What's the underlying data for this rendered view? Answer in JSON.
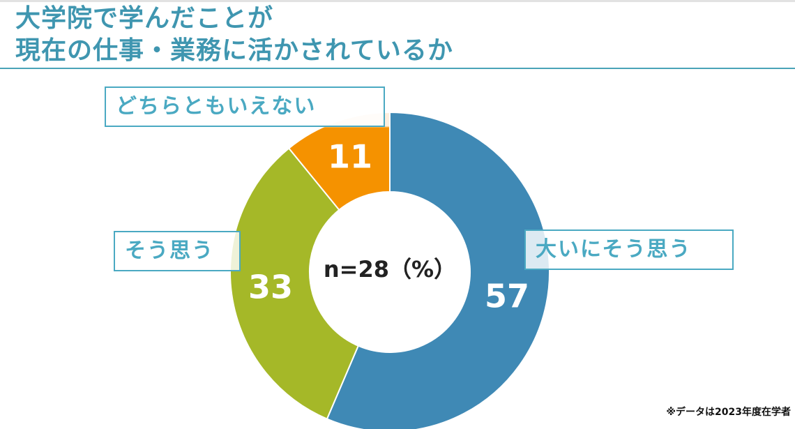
{
  "title": {
    "line1": "大学院で学んだことが",
    "line2": "現在の仕事・業務に活かされているか"
  },
  "center_label": "n=28（%）",
  "note": "※データは2023年度在学者",
  "colors": {
    "accent": "#3f96b0",
    "label_border": "#4aa9c2",
    "strongly_agree": "#3f89b5",
    "agree": "#a5b828",
    "neutral": "#f59200",
    "neutral_top": "#fdeedd"
  },
  "chart_data": {
    "type": "pie",
    "donut": true,
    "title": "",
    "categories": [
      "大いにそう思う",
      "そう思う",
      "どちらともいえない"
    ],
    "values": [
      57,
      33,
      11
    ],
    "value_labels": [
      "57",
      "33",
      "11"
    ],
    "legend": "none"
  }
}
